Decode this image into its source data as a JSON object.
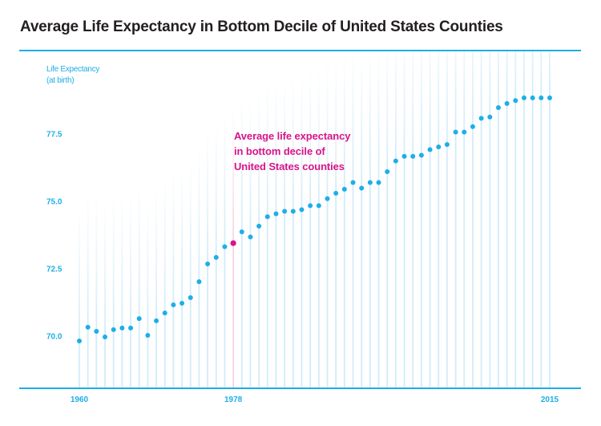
{
  "chart_data": {
    "type": "scatter",
    "title": "Average Life Expectancy in Bottom Decile of United States Counties",
    "ylabel_lines": [
      "Life Expectancy",
      "(at birth)"
    ],
    "xlabel": "",
    "ylim": [
      68.6,
      79.9
    ],
    "xlim": [
      1960,
      2015
    ],
    "yticks": [
      70.0,
      72.5,
      75.0,
      77.5
    ],
    "ytick_labels": [
      "70.0",
      "72.5",
      "75.0",
      "77.5"
    ],
    "xticks": [
      1960,
      1978,
      2015
    ],
    "xtick_labels": [
      "1960",
      "1978",
      "2015"
    ],
    "grid": false,
    "highlight_year": 1978,
    "annotation_lines": [
      "Average life expectancy",
      "in bottom decile of",
      "United States counties"
    ],
    "colors": {
      "point": "#1eaee8",
      "highlight": "#d9138a",
      "stem": "#d2ecf9",
      "highlight_stem": "#f7d3e6",
      "axis": "#1eaee8",
      "title": "#231f20"
    },
    "x": [
      1960,
      1961,
      1962,
      1963,
      1964,
      1965,
      1966,
      1967,
      1968,
      1969,
      1970,
      1971,
      1972,
      1973,
      1974,
      1975,
      1976,
      1977,
      1978,
      1979,
      1980,
      1981,
      1982,
      1983,
      1984,
      1985,
      1986,
      1987,
      1988,
      1989,
      1990,
      1991,
      1992,
      1993,
      1994,
      1995,
      1996,
      1997,
      1998,
      1999,
      2000,
      2001,
      2002,
      2003,
      2004,
      2005,
      2006,
      2007,
      2008,
      2009,
      2010,
      2011,
      2012,
      2013,
      2014,
      2015
    ],
    "values": [
      69.82,
      70.33,
      70.18,
      69.97,
      70.24,
      70.3,
      70.3,
      70.65,
      70.03,
      70.57,
      70.86,
      71.16,
      71.22,
      71.43,
      72.02,
      72.68,
      72.92,
      73.32,
      73.45,
      73.87,
      73.68,
      74.08,
      74.43,
      74.54,
      74.63,
      74.63,
      74.69,
      74.84,
      74.84,
      75.1,
      75.3,
      75.45,
      75.7,
      75.49,
      75.7,
      75.7,
      76.1,
      76.5,
      76.67,
      76.67,
      76.71,
      76.92,
      77.02,
      77.11,
      77.57,
      77.57,
      77.77,
      78.08,
      78.13,
      78.48,
      78.63,
      78.74,
      78.84,
      78.84,
      78.84,
      78.84
    ]
  }
}
